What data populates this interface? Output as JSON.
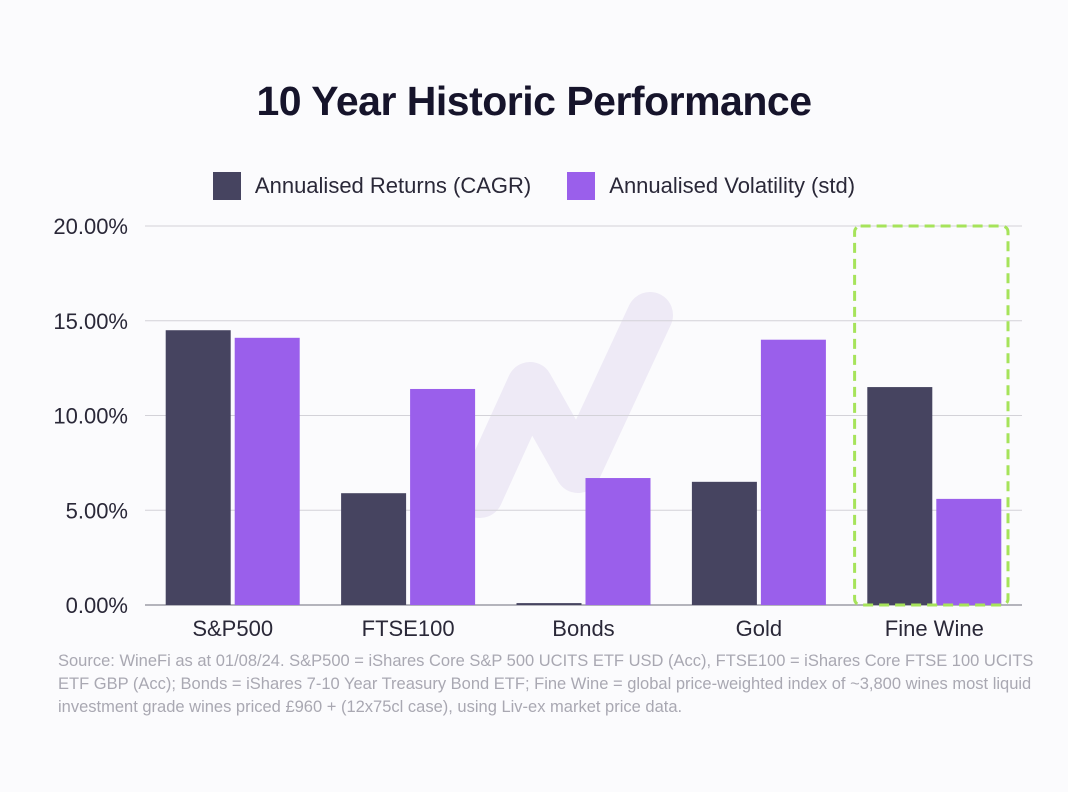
{
  "chart_data": {
    "type": "bar",
    "title": "10 Year Historic Performance",
    "categories": [
      "S&P500",
      "FTSE100",
      "Bonds",
      "Gold",
      "Fine Wine"
    ],
    "series": [
      {
        "name": "Annualised Returns (CAGR)",
        "color": "#464460",
        "values": [
          14.5,
          5.9,
          0.1,
          6.5,
          11.5
        ]
      },
      {
        "name": "Annualised Volatility (std)",
        "color": "#9a5feb",
        "values": [
          14.1,
          11.4,
          6.7,
          14.0,
          5.6
        ]
      }
    ],
    "ylim": [
      0,
      20
    ],
    "yticks": [
      "0.00%",
      "5.00%",
      "10.00%",
      "15.00%",
      "20.00%"
    ],
    "ytick_values": [
      0,
      5,
      10,
      15,
      20
    ],
    "xlabel": "",
    "ylabel": "",
    "grid": true,
    "legend": "top-center",
    "highlight_category": "Fine Wine",
    "highlight_color": "#a6e35a"
  },
  "footer": {
    "source": "Source: WineFi as at 01/08/24. S&P500 = iShares Core S&P 500 UCITS ETF USD (Acc), FTSE100 = iShares Core FTSE 100 UCITS ETF GBP (Acc);  Bonds = iShares 7-10 Year Treasury Bond ETF; Fine Wine = global price-weighted index of ~3,800 wines most liquid investment grade wines priced £960 + (12x75cl case), using Liv-ex market price data."
  }
}
